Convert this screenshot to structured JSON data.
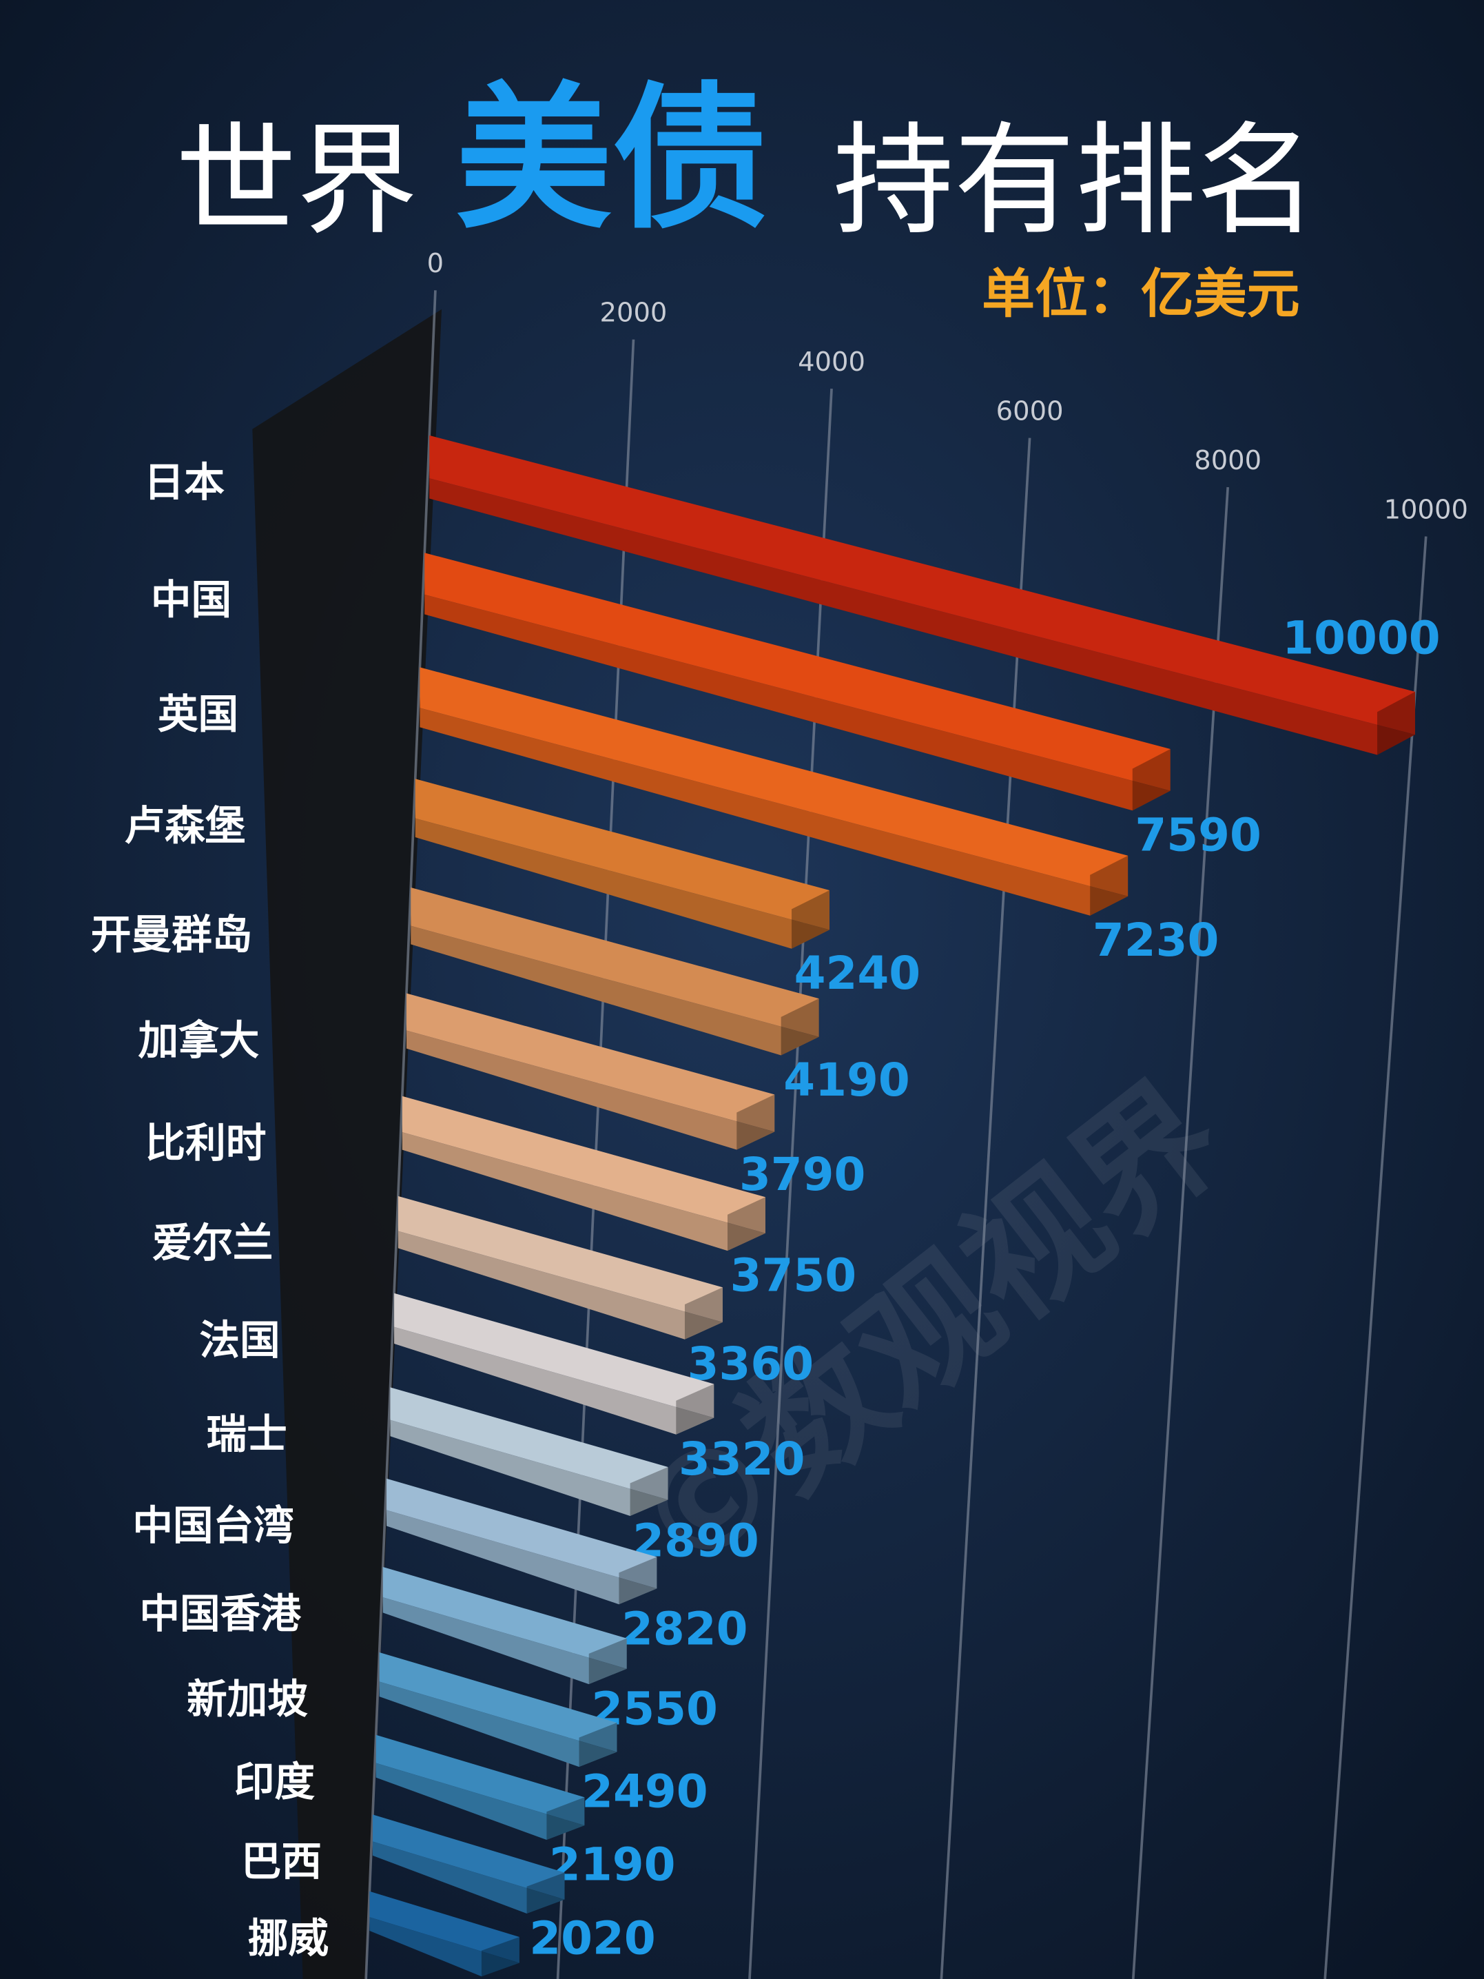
{
  "chart_data": {
    "type": "bar3d",
    "title": [
      "世界",
      "美债",
      "持有排名"
    ],
    "unit": "单位：亿美元",
    "categories": [
      "日本",
      "中国",
      "英国",
      "卢森堡",
      "开曼群岛",
      "加拿大",
      "比利时",
      "爱尔兰",
      "法国",
      "瑞士",
      "中国台湾",
      "中国香港",
      "新加坡",
      "印度",
      "巴西",
      "挪威"
    ],
    "values": [
      10000,
      7590,
      7230,
      4240,
      4190,
      3790,
      3750,
      3360,
      3320,
      2890,
      2820,
      2550,
      2490,
      2190,
      2020,
      1580
    ],
    "colors": [
      "#c8260f",
      "#e24a12",
      "#e8651d",
      "#d97a30",
      "#d48b52",
      "#dc9d6e",
      "#e3b18c",
      "#dcbea8",
      "#d8d2d2",
      "#b9cbd8",
      "#9dbbd4",
      "#7daed0",
      "#5199c6",
      "#3a89bc",
      "#2b78b0",
      "#1b64a0"
    ],
    "xlim": [
      0,
      10000
    ],
    "xticks": [
      0,
      2000,
      4000,
      6000,
      8000,
      10000
    ],
    "grid": true,
    "watermark": "©数观视界"
  }
}
